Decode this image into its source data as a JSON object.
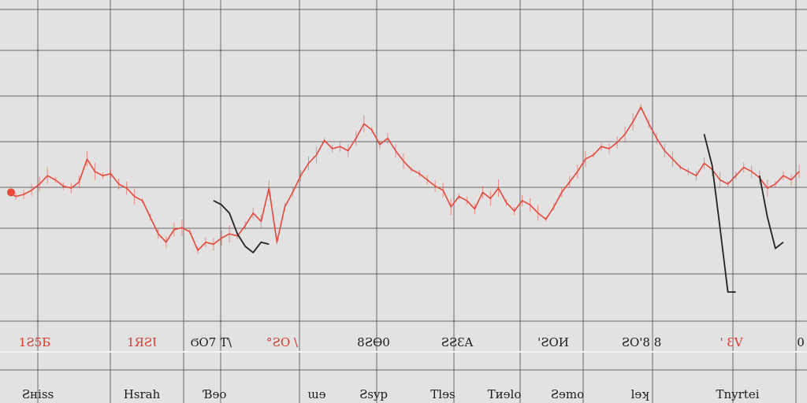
{
  "colors": {
    "background": "#e2e2e2",
    "grid": "#4a4a4a",
    "series_main": "#e8473a",
    "series_dark": "#222222",
    "baseline": "#f4f4f4"
  },
  "chart_data": {
    "type": "line",
    "title": "",
    "xlabel": "",
    "ylabel": "",
    "grid": true,
    "legend": "none",
    "x_tick_labels_top": [
      {
        "text": "1Ƨ5Ƃ",
        "red": true
      },
      {
        "text": "1ЯƧƖ",
        "red": true
      },
      {
        "text": "ϬO7 Ƭ\\",
        "red": false
      },
      {
        "text": "°ƧO \\",
        "red": true
      },
      {
        "text": "8ƧƟ0",
        "red": false
      },
      {
        "text": "ƧƧƐA",
        "red": false
      },
      {
        "text": "'ƧOИ",
        "red": false
      },
      {
        "text": "ƧO'8 8",
        "red": false
      },
      {
        "text": "' ƐV",
        "red": true
      },
      {
        "text": "0",
        "red": false
      }
    ],
    "x_tick_labels_bottom": [
      "Ƨнiss",
      "Hsrah",
      "Ɓɘo",
      "ɯɘ",
      "Ƨsyp",
      "Tlɘs",
      "Tиɘlo",
      "Ƨɘmo",
      "lɘʞ",
      "Tnyrtei"
    ],
    "series": [
      {
        "color": "red",
        "x": [
          0,
          1,
          2,
          3,
          4,
          5,
          6,
          7,
          8,
          9,
          10,
          11,
          12,
          13,
          14,
          15,
          16,
          17,
          18,
          19,
          20,
          21,
          22,
          23,
          24,
          25,
          26,
          27,
          28,
          29,
          30,
          31,
          32,
          33,
          34,
          35,
          36,
          37,
          38,
          39,
          40,
          41,
          42,
          43,
          44,
          45,
          46,
          47,
          48,
          49,
          50,
          51,
          52,
          53,
          54,
          55,
          56,
          57,
          58,
          59,
          60,
          61,
          62,
          63,
          64,
          65,
          66,
          67,
          68,
          69,
          70,
          71,
          72,
          73,
          74,
          75,
          76,
          77,
          78,
          79,
          80,
          81,
          82,
          83,
          84,
          85,
          86,
          87,
          88,
          89,
          90,
          91,
          92,
          93,
          94,
          95,
          96,
          97,
          98,
          99,
          100
        ],
        "y": [
          62,
          60,
          61,
          63,
          66,
          70,
          68,
          65,
          64,
          67,
          78,
          72,
          70,
          71,
          66,
          64,
          60,
          58,
          50,
          42,
          38,
          44,
          45,
          43,
          34,
          38,
          37,
          40,
          42,
          41,
          46,
          52,
          48,
          64,
          38,
          55,
          62,
          70,
          76,
          80,
          87,
          83,
          84,
          82,
          88,
          95,
          92,
          85,
          88,
          82,
          77,
          73,
          71,
          68,
          65,
          63,
          55,
          60,
          58,
          54,
          62,
          59,
          64,
          57,
          53,
          58,
          56,
          52,
          49,
          55,
          62,
          67,
          72,
          78,
          80,
          84,
          83,
          86,
          90,
          96,
          103,
          95,
          88,
          82,
          78,
          74,
          72,
          70,
          76,
          73,
          68,
          66,
          70,
          74,
          72,
          69,
          64,
          66,
          70,
          68,
          72
        ]
      },
      {
        "color": "black",
        "x": [
          26,
          27,
          28,
          29,
          30,
          31,
          32,
          33
        ],
        "y": [
          58,
          56,
          52,
          42,
          36,
          33,
          38,
          37
        ]
      },
      {
        "color": "black",
        "x": [
          88,
          89,
          90,
          91,
          92
        ],
        "y": [
          90,
          75,
          45,
          14,
          14
        ]
      },
      {
        "color": "black",
        "x": [
          95,
          96,
          97,
          98
        ],
        "y": [
          70,
          50,
          35,
          38
        ]
      }
    ]
  }
}
